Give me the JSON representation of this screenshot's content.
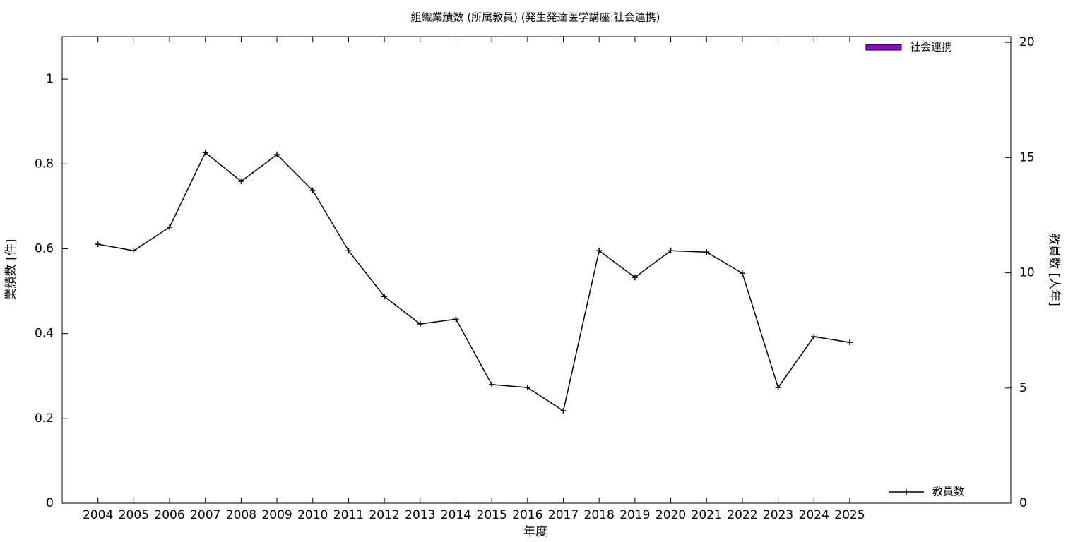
{
  "chart_data": {
    "type": "bar+line",
    "title": "組織業績数 (所属教員) (発生発達医学講座:社会連携)",
    "x_label": "年度",
    "y_label": "業績数 [件]",
    "y2_label": "教員数 [人年]",
    "x": [
      2004,
      2005,
      2006,
      2007,
      2008,
      2009,
      2010,
      2011,
      2012,
      2013,
      2014,
      2015,
      2016,
      2017,
      2018,
      2019,
      2020,
      2021,
      2022,
      2023,
      2024,
      2025
    ],
    "xlim": [
      2003,
      2029.5
    ],
    "xticks": [
      2004,
      2005,
      2006,
      2007,
      2008,
      2009,
      2010,
      2011,
      2012,
      2013,
      2014,
      2015,
      2016,
      2017,
      2018,
      2019,
      2020,
      2021,
      2022,
      2023,
      2024,
      2025
    ],
    "ylim": [
      0,
      1.1
    ],
    "yticks": [
      0,
      0.2,
      0.4,
      0.6,
      0.8,
      1
    ],
    "y2lim": [
      0,
      20.25
    ],
    "y2ticks": [
      0,
      5,
      10,
      15,
      20
    ],
    "series": [
      {
        "name": "社会連携",
        "type": "bar",
        "color": "#9400d3",
        "legend": "top right",
        "values": [
          0,
          0,
          0,
          0,
          0,
          0,
          0,
          0,
          0,
          0,
          0,
          0,
          0,
          0,
          0,
          0,
          0,
          0,
          0,
          0,
          0,
          0
        ]
      },
      {
        "name": "教員数",
        "type": "line",
        "axis": "y2",
        "color": "#000000",
        "legend": "bottom right",
        "values": [
          11.24,
          10.96,
          11.98,
          15.22,
          13.97,
          15.13,
          13.57,
          10.96,
          8.97,
          7.78,
          7.99,
          5.15,
          5.02,
          4.01,
          10.96,
          9.8,
          10.96,
          10.9,
          9.98,
          5.02,
          7.23,
          6.98
        ]
      }
    ]
  }
}
